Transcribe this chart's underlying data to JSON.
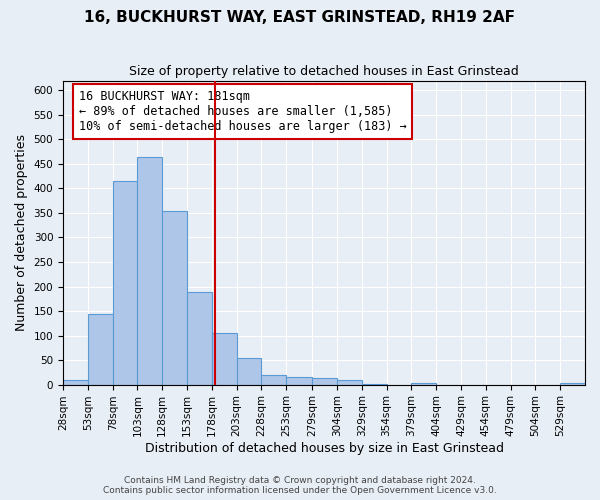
{
  "title": "16, BUCKHURST WAY, EAST GRINSTEAD, RH19 2AF",
  "subtitle": "Size of property relative to detached houses in East Grinstead",
  "xlabel": "Distribution of detached houses by size in East Grinstead",
  "ylabel": "Number of detached properties",
  "bin_labels": [
    "28sqm",
    "53sqm",
    "78sqm",
    "103sqm",
    "128sqm",
    "153sqm",
    "178sqm",
    "203sqm",
    "228sqm",
    "253sqm",
    "279sqm",
    "304sqm",
    "329sqm",
    "354sqm",
    "379sqm",
    "404sqm",
    "429sqm",
    "454sqm",
    "479sqm",
    "504sqm",
    "529sqm"
  ],
  "bar_heights": [
    10,
    143,
    415,
    465,
    355,
    188,
    105,
    55,
    20,
    15,
    14,
    10,
    2,
    0,
    3,
    0,
    0,
    0,
    0,
    0,
    3
  ],
  "bin_edges": [
    28,
    53,
    78,
    103,
    128,
    153,
    178,
    203,
    228,
    253,
    279,
    304,
    329,
    354,
    379,
    404,
    429,
    454,
    479,
    504,
    529,
    554
  ],
  "bar_color": "#aec6e8",
  "bar_edge_color": "#5b9bd5",
  "property_size": 181,
  "vline_color": "#cc0000",
  "annotation_box_text": "16 BUCKHURST WAY: 181sqm\n← 89% of detached houses are smaller (1,585)\n10% of semi-detached houses are larger (183) →",
  "annotation_box_edge_color": "#cc0000",
  "ylim": [
    0,
    620
  ],
  "yticks": [
    0,
    50,
    100,
    150,
    200,
    250,
    300,
    350,
    400,
    450,
    500,
    550,
    600
  ],
  "background_color": "#e8eef5",
  "plot_bg_color": "#e8eef5",
  "footer_text": "Contains HM Land Registry data © Crown copyright and database right 2024.\nContains public sector information licensed under the Open Government Licence v3.0.",
  "title_fontsize": 11,
  "subtitle_fontsize": 9,
  "xlabel_fontsize": 9,
  "ylabel_fontsize": 9,
  "tick_fontsize": 7.5,
  "annotation_fontsize": 8.5
}
